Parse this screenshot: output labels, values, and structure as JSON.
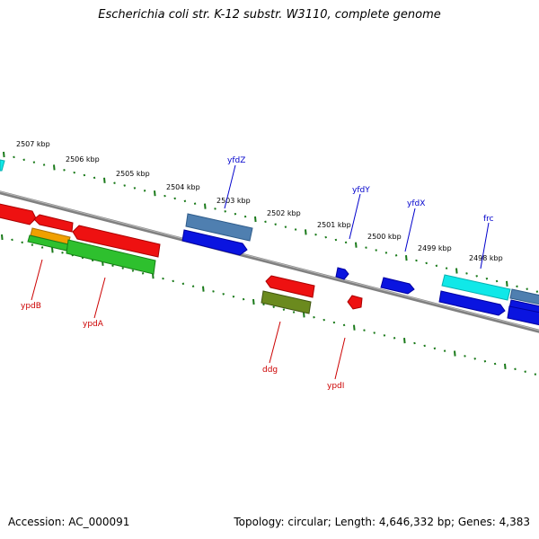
{
  "title": "Escherichia coli str. K-12 substr. W3110, complete genome",
  "footer": {
    "accession": "Accession: AC_000091",
    "summary": "Topology: circular; Length: 4,646,332 bp; Genes: 4,383"
  },
  "colors": {
    "backbone": "#808080",
    "ruler": "#1a7a1a",
    "forward_label": "#0000cc",
    "reverse_label": "#cc0000",
    "red": "#ee1111",
    "blue": "#0a14e0",
    "steelblue": "#4f7fb0",
    "cyan": "#10e8e8",
    "green": "#2ec02e",
    "orange": "#f0a000",
    "olive": "#6b8a1e"
  },
  "kbp_labels": [
    "2507 kbp",
    "2506 kbp",
    "2505 kbp",
    "2504 kbp",
    "2503 kbp",
    "2502 kbp",
    "2501 kbp",
    "2500 kbp",
    "2499 kbp",
    "2498 kbp"
  ],
  "genes": [
    {
      "name": "yfdZ",
      "strand": "forward"
    },
    {
      "name": "yfdY",
      "strand": "forward"
    },
    {
      "name": "yfdX",
      "strand": "forward"
    },
    {
      "name": "frc",
      "strand": "forward"
    },
    {
      "name": "ypdB",
      "strand": "reverse"
    },
    {
      "name": "ypdA",
      "strand": "reverse"
    },
    {
      "name": "ddg",
      "strand": "reverse"
    },
    {
      "name": "ypdI",
      "strand": "reverse"
    }
  ]
}
